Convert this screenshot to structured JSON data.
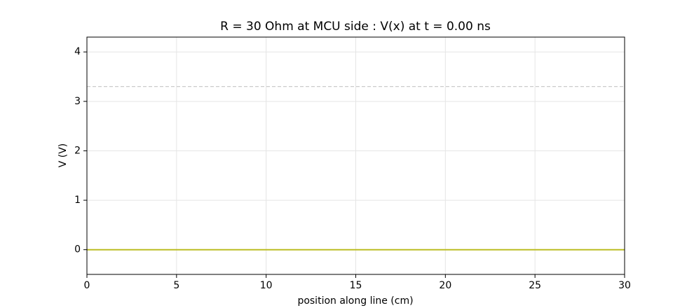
{
  "chart_data": {
    "type": "line",
    "title": "R = 30 Ohm at MCU side : V(x) at t = 0.00 ns",
    "xlabel": "position along line (cm)",
    "ylabel": "V (V)",
    "x": [
      0,
      30
    ],
    "values": [
      0,
      0
    ],
    "color": "#bcbd22",
    "xlim": [
      0,
      30
    ],
    "xticks": [
      0,
      5,
      10,
      15,
      20,
      25,
      30
    ],
    "ylim": [
      -0.5,
      4.3
    ],
    "yticks": [
      0,
      1,
      2,
      3,
      4
    ],
    "hlines": [
      {
        "value": 3.3,
        "color": "#cccccc",
        "style": "dashed"
      }
    ],
    "grid": true
  }
}
